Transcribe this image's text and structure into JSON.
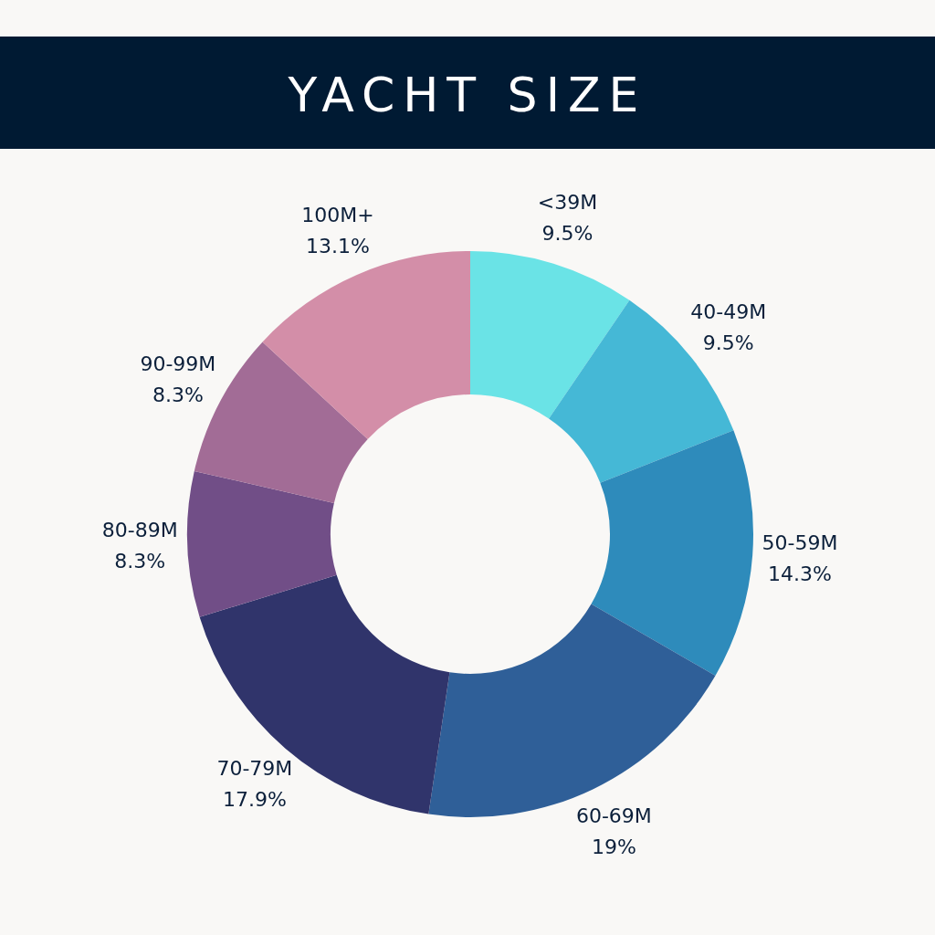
{
  "chart_data": {
    "type": "donut",
    "title": "YACHT SIZE",
    "categories": [
      "<39M",
      "40-49M",
      "50-59M",
      "60-69M",
      "70-79M",
      "80-89M",
      "90-99M",
      "100M+"
    ],
    "values": [
      9.5,
      9.5,
      14.3,
      19,
      17.9,
      8.3,
      8.3,
      13.1
    ],
    "value_labels": [
      "9.5%",
      "9.5%",
      "14.3%",
      "19%",
      "17.9%",
      "8.3%",
      "8.3%",
      "13.1%"
    ],
    "colors": [
      "#6ae3e6",
      "#45b8d6",
      "#2e8bbb",
      "#2f5f98",
      "#30346b",
      "#714e87",
      "#a26c96",
      "#d38ea8"
    ]
  }
}
